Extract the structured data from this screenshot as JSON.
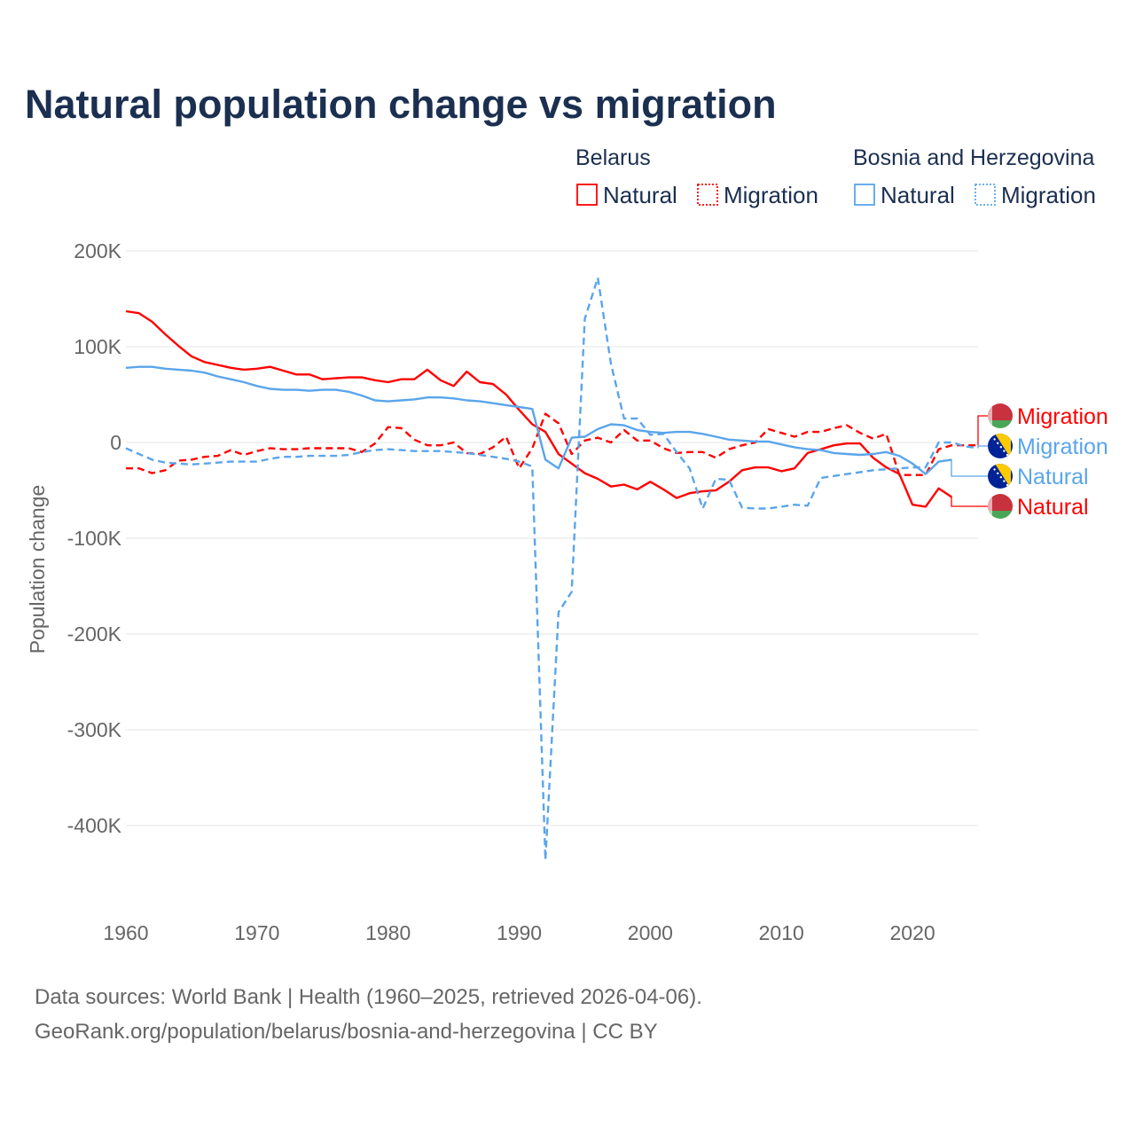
{
  "title": "Natural population change vs migration",
  "legend": {
    "groups": [
      {
        "name": "Belarus",
        "color": "#ff0000",
        "items": [
          "Natural",
          "Migration"
        ]
      },
      {
        "name": "Bosnia and Herzegovina",
        "color": "#5aa5eb",
        "items": [
          "Natural",
          "Migration"
        ]
      }
    ]
  },
  "source": {
    "line1": "Data sources: World Bank | Health (1960–2025, retrieved 2026-04-06).",
    "line2": "GeoRank.org/population/belarus/bosnia-and-herzegovina | CC BY"
  },
  "chart_data": {
    "type": "line",
    "title": "Natural population change vs migration",
    "xlabel": "",
    "ylabel": "Population change",
    "xlim": [
      1960,
      2025
    ],
    "ylim": [
      -450000,
      200000
    ],
    "x_ticks": [
      1960,
      1970,
      1980,
      1990,
      2000,
      2010,
      2020
    ],
    "x_tick_labels": [
      "1960",
      "1970",
      "1980",
      "1990",
      "2000",
      "2010",
      "2020"
    ],
    "y_ticks": [
      200000,
      100000,
      0,
      -100000,
      -200000,
      -300000,
      -400000
    ],
    "y_tick_labels": [
      "200K",
      "100K",
      "0",
      "-100K",
      "-200K",
      "-300K",
      "-400K"
    ],
    "grid": true,
    "legend_placement": "top-right",
    "start_year": 1960,
    "series": [
      {
        "name": "Natural",
        "country": "Belarus",
        "color": "#ff0000",
        "dash": "solid",
        "flag": "belarus",
        "values": [
          137000,
          135000,
          126000,
          113000,
          101000,
          90000,
          84000,
          81000,
          78000,
          76000,
          77000,
          79000,
          75000,
          71000,
          71000,
          66000,
          67000,
          68000,
          68000,
          65000,
          63000,
          66000,
          66000,
          76000,
          65000,
          59000,
          74000,
          63000,
          61000,
          50000,
          34000,
          19000,
          11000,
          -12000,
          -22000,
          -32000,
          -38000,
          -46000,
          -44000,
          -49000,
          -41000,
          -49000,
          -58000,
          -53000,
          -51000,
          -50000,
          -41000,
          -29000,
          -26000,
          -26000,
          -30000,
          -27000,
          -11000,
          -7000,
          -3000,
          -1000,
          -1000,
          -16000,
          -26000,
          -33000,
          -65000,
          -67000,
          -48000,
          -57000
        ]
      },
      {
        "name": "Migration",
        "country": "Belarus",
        "color": "#ff0000",
        "dash": "dashed",
        "flag": "belarus",
        "values": [
          -27000,
          -27000,
          -32000,
          -29000,
          -19000,
          -18000,
          -15000,
          -14000,
          -8000,
          -13000,
          -9000,
          -6000,
          -7000,
          -7000,
          -6000,
          -6000,
          -6000,
          -6000,
          -10000,
          -1000,
          16000,
          15000,
          3000,
          -3000,
          -3000,
          0,
          -11000,
          -12000,
          -5000,
          6000,
          -27000,
          -6000,
          30000,
          20000,
          -12000,
          2000,
          5000,
          0,
          13000,
          2000,
          2000,
          -6000,
          -11000,
          -10000,
          -10000,
          -16000,
          -7000,
          -3000,
          0,
          14000,
          10000,
          6000,
          11000,
          11000,
          15000,
          18000,
          10000,
          4000,
          9000,
          -34000,
          -34000,
          -34000,
          -7000,
          -3000,
          -3000,
          -3000
        ]
      },
      {
        "name": "Natural",
        "country": "Bosnia and Herzegovina",
        "color": "#5aa5eb",
        "dash": "solid",
        "flag": "bosnia",
        "values": [
          78000,
          79000,
          79000,
          77000,
          76000,
          75000,
          73000,
          69000,
          66000,
          63000,
          59000,
          56000,
          55000,
          55000,
          54000,
          55000,
          55000,
          53000,
          49000,
          44000,
          43000,
          44000,
          45000,
          47000,
          47000,
          46000,
          44000,
          43000,
          41000,
          39000,
          37000,
          35000,
          -18000,
          -27000,
          5000,
          6000,
          14000,
          19000,
          18000,
          13000,
          11000,
          10000,
          11000,
          11000,
          9000,
          6000,
          3000,
          2000,
          1000,
          1000,
          -2000,
          -5000,
          -7000,
          -8000,
          -11000,
          -12000,
          -13000,
          -12000,
          -10000,
          -14000,
          -22000,
          -33000,
          -20000,
          -18000
        ]
      },
      {
        "name": "Migration",
        "country": "Bosnia and Herzegovina",
        "color": "#5aa5eb",
        "dash": "dashed",
        "flag": "bosnia",
        "values": [
          -6000,
          -12000,
          -18000,
          -21000,
          -22000,
          -23000,
          -22000,
          -21000,
          -20000,
          -20000,
          -20000,
          -17000,
          -15000,
          -15000,
          -14000,
          -14000,
          -14000,
          -13000,
          -10000,
          -8000,
          -7000,
          -8000,
          -9000,
          -9000,
          -9000,
          -10000,
          -11000,
          -13000,
          -15000,
          -17000,
          -20000,
          -25000,
          -436000,
          -177000,
          -156000,
          129000,
          172000,
          82000,
          25000,
          25000,
          8000,
          9000,
          -10000,
          -27000,
          -69000,
          -38000,
          -39000,
          -68000,
          -69000,
          -69000,
          -67000,
          -65000,
          -66000,
          -37000,
          -35000,
          -33000,
          -31000,
          -29000,
          -28000,
          -27000,
          -26000,
          -26000,
          0,
          0,
          -4000,
          -6000
        ]
      }
    ],
    "end_labels": [
      {
        "text": "Migration",
        "series_index": 1
      },
      {
        "text": "Migration",
        "series_index": 3
      },
      {
        "text": "Natural",
        "series_index": 2
      },
      {
        "text": "Natural",
        "series_index": 0
      }
    ]
  }
}
